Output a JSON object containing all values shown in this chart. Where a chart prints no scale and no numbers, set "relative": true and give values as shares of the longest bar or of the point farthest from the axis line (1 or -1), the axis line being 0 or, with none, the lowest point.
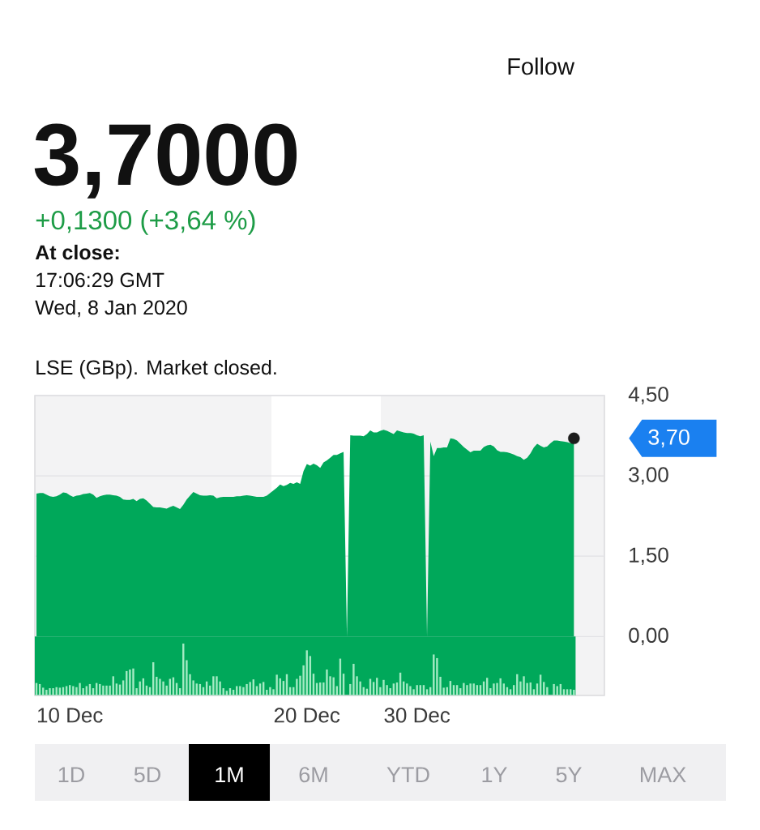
{
  "chart_data": [
    {
      "type": "area",
      "subtitle": "3,7000",
      "annotations": [
        "+0,1300 (+3,64 %)",
        "At close:",
        "17:06:29 GMT",
        "Wed, 8 Jan 2020",
        "LSE (GBp). Market closed.",
        "Follow",
        "1D",
        "5D",
        "1M",
        "6M",
        "YTD",
        "1Y",
        "5Y",
        "MAX",
        "3,70"
      ],
      "categories": [
        null,
        null,
        null,
        null,
        null,
        null,
        null,
        null,
        null,
        null,
        "10 Dec",
        null,
        null,
        null,
        null,
        null,
        null,
        null,
        null,
        null,
        null,
        null,
        null,
        null,
        null,
        null,
        null,
        null,
        null,
        null,
        null,
        null,
        null,
        null,
        null,
        null,
        null,
        null,
        null,
        null,
        null,
        null,
        null,
        null,
        null,
        null,
        null,
        null,
        null,
        null,
        null,
        null,
        null,
        null,
        null,
        null,
        null,
        null,
        null,
        null,
        null,
        null,
        null,
        null,
        null,
        null,
        null,
        null,
        null,
        null,
        null,
        null,
        null,
        null,
        null,
        null,
        null,
        null,
        null,
        null,
        null,
        "20 Dec",
        null,
        null,
        null,
        null,
        null,
        null,
        null,
        null,
        null,
        null,
        null,
        null,
        null,
        null,
        null,
        null,
        null,
        null,
        null,
        null,
        null,
        null,
        null,
        null,
        null,
        null,
        null,
        null,
        null,
        null,
        null,
        null,
        "30 Dec",
        null,
        null,
        null,
        null,
        null,
        null,
        null,
        null,
        null,
        null,
        null,
        null,
        null,
        null,
        null,
        null,
        null,
        null,
        null,
        null,
        null,
        null,
        null,
        null,
        null,
        null,
        null,
        null,
        null,
        null,
        null,
        null,
        null,
        null,
        null,
        null,
        null,
        null,
        null,
        null,
        null,
        null,
        null,
        null,
        null,
        null,
        null
      ],
      "series": [
        {
          "type": "area",
          "color": "#00a85a",
          "values": [
            2.67,
            2.68,
            2.68,
            2.65,
            2.62,
            2.61,
            2.62,
            2.65,
            2.69,
            2.68,
            2.64,
            2.61,
            2.63,
            2.64,
            2.66,
            2.67,
            2.68,
            2.65,
            2.59,
            2.62,
            2.64,
            2.65,
            2.65,
            2.64,
            2.63,
            2.61,
            2.56,
            2.55,
            2.55,
            2.57,
            2.53,
            2.57,
            2.58,
            2.54,
            2.48,
            2.42,
            2.41,
            2.41,
            2.4,
            2.39,
            2.42,
            2.44,
            2.41,
            2.38,
            2.46,
            2.56,
            2.63,
            2.7,
            2.67,
            2.64,
            2.63,
            2.63,
            2.64,
            2.63,
            2.58,
            2.6,
            2.61,
            2.61,
            2.61,
            2.61,
            2.62,
            2.62,
            2.63,
            2.64,
            2.63,
            2.62,
            2.61,
            2.61,
            2.61,
            2.63,
            2.68,
            2.73,
            2.78,
            2.84,
            2.81,
            2.83,
            2.87,
            2.85,
            2.88,
            2.85,
            3.09,
            3.22,
            3.19,
            3.23,
            3.2,
            3.15,
            3.25,
            3.29,
            3.34,
            3.39,
            3.39,
            3.42,
            3.45,
            0,
            3.76,
            3.75,
            3.75,
            3.75,
            3.74,
            3.78,
            3.85,
            3.81,
            3.81,
            3.84,
            3.86,
            3.84,
            3.81,
            3.78,
            3.85,
            3.83,
            3.81,
            3.8,
            3.8,
            3.79,
            3.76,
            3.74,
            3.76,
            0,
            3.64,
            3.37,
            3.52,
            3.52,
            3.53,
            3.53,
            3.7,
            3.69,
            3.66,
            3.6,
            3.54,
            3.49,
            3.44,
            3.47,
            3.47,
            3.47,
            3.54,
            3.57,
            3.58,
            3.55,
            3.48,
            3.45,
            3.45,
            3.44,
            3.42,
            3.4,
            3.37,
            3.35,
            3.3,
            3.34,
            3.42,
            3.53,
            3.6,
            3.56,
            3.53,
            3.55,
            3.61,
            3.66,
            3.66,
            3.65,
            3.64,
            3.63,
            3.61,
            3.7
          ]
        },
        {
          "type": "scatter",
          "color": "#1c1c1c",
          "marker": "circle",
          "values": [
            null,
            null,
            null,
            null,
            null,
            null,
            null,
            null,
            null,
            null,
            null,
            null,
            null,
            null,
            null,
            null,
            null,
            null,
            null,
            null,
            null,
            null,
            null,
            null,
            null,
            null,
            null,
            null,
            null,
            null,
            null,
            null,
            null,
            null,
            null,
            null,
            null,
            null,
            null,
            null,
            null,
            null,
            null,
            null,
            null,
            null,
            null,
            null,
            null,
            null,
            null,
            null,
            null,
            null,
            null,
            null,
            null,
            null,
            null,
            null,
            null,
            null,
            null,
            null,
            null,
            null,
            null,
            null,
            null,
            null,
            null,
            null,
            null,
            null,
            null,
            null,
            null,
            null,
            null,
            null,
            null,
            null,
            null,
            null,
            null,
            null,
            null,
            null,
            null,
            null,
            null,
            null,
            null,
            null,
            null,
            null,
            null,
            null,
            null,
            null,
            null,
            null,
            null,
            null,
            null,
            null,
            null,
            null,
            null,
            null,
            null,
            null,
            null,
            null,
            null,
            null,
            null,
            null,
            null,
            null,
            null,
            null,
            null,
            null,
            null,
            null,
            null,
            null,
            null,
            null,
            null,
            null,
            null,
            null,
            null,
            null,
            null,
            null,
            null,
            null,
            null,
            null,
            null,
            null,
            null,
            null,
            null,
            null,
            null,
            null,
            null,
            null,
            null,
            null,
            null,
            null,
            null,
            null,
            null,
            null,
            null,
            3.7
          ]
        }
      ],
      "ylim": [
        -1.1,
        4.5
      ],
      "yticks": [
        {
          "value": 0,
          "label": "0,00"
        },
        {
          "value": 1.5,
          "label": "1,50"
        },
        {
          "value": 3,
          "label": "3,00"
        },
        {
          "value": 4.5,
          "label": "4,50"
        }
      ],
      "grid": "y"
    },
    {
      "type": "bar",
      "relative": true,
      "color": "#a4eac3",
      "categories": [
        null,
        null,
        null,
        null,
        null,
        null,
        null,
        null,
        null,
        null,
        null,
        null,
        null,
        null,
        null,
        null,
        null,
        null,
        null,
        null,
        null,
        null,
        null,
        null,
        null,
        null,
        null,
        null,
        null,
        null,
        null,
        null,
        null,
        null,
        null,
        null,
        null,
        null,
        null,
        null,
        null,
        null,
        null,
        null,
        null,
        null,
        null,
        null,
        null,
        null,
        null,
        null,
        null,
        null,
        null,
        null,
        null,
        null,
        null,
        null,
        null,
        null,
        null,
        null,
        null,
        null,
        null,
        null,
        null,
        null,
        null,
        null,
        null,
        null,
        null,
        null,
        null,
        null,
        null,
        null,
        null,
        null,
        null,
        null,
        null,
        null,
        null,
        null,
        null,
        null,
        null,
        null,
        null,
        null,
        null,
        null,
        null,
        null,
        null,
        null,
        null,
        null,
        null,
        null,
        null,
        null,
        null,
        null,
        null,
        null,
        null,
        null,
        null,
        null,
        null,
        null,
        null,
        null,
        null,
        null,
        null,
        null,
        null,
        null,
        null,
        null,
        null,
        null,
        null,
        null,
        null,
        null,
        null,
        null,
        null,
        null,
        null,
        null,
        null,
        null,
        null,
        null,
        null,
        null,
        null,
        null,
        null,
        null,
        null,
        null,
        null,
        null,
        null,
        null,
        null,
        null,
        null,
        null,
        null,
        null,
        null,
        null
      ],
      "values": [
        0.24,
        0.22,
        0.15,
        0.11,
        0.14,
        0.14,
        0.16,
        0.15,
        0.16,
        0.18,
        0.2,
        0.18,
        0.16,
        0.24,
        0.14,
        0.18,
        0.22,
        0.14,
        0.24,
        0.22,
        0.19,
        0.19,
        0.19,
        0.37,
        0.23,
        0.21,
        0.29,
        0.47,
        0.5,
        0.52,
        0.14,
        0.27,
        0.33,
        0.19,
        0.16,
        0.64,
        0.36,
        0.32,
        0.27,
        0.19,
        0.32,
        0.35,
        0.24,
        0.14,
        1,
        0.68,
        0.41,
        0.29,
        0.23,
        0.22,
        0.16,
        0.27,
        0.19,
        0.37,
        0.37,
        0.27,
        0.14,
        0.09,
        0.14,
        0.11,
        0.18,
        0.18,
        0.16,
        0.22,
        0.26,
        0.31,
        0.18,
        0.23,
        0.26,
        0.11,
        0.16,
        0.12,
        0.4,
        0.33,
        0.28,
        0.41,
        0.16,
        0.16,
        0.32,
        0.38,
        0.58,
        0.87,
        0.76,
        0.42,
        0.24,
        0.25,
        0.25,
        0.5,
        0.37,
        0.35,
        0.18,
        0.71,
        0.42,
        null,
        0.22,
        0.61,
        0.37,
        0.27,
        0.16,
        0.13,
        0.32,
        0.26,
        0.34,
        0.16,
        0.3,
        0.2,
        0.14,
        0.23,
        0.25,
        0.44,
        0.27,
        0.23,
        0.18,
        0.12,
        0.2,
        0.2,
        0.2,
        0.12,
        0.16,
        0.79,
        0.72,
        0.36,
        0.15,
        0.16,
        0.28,
        0.2,
        0.2,
        0.14,
        0.24,
        0.2,
        0.23,
        0.23,
        0.2,
        0.2,
        0.27,
        0.34,
        0.14,
        0.23,
        0.24,
        0.33,
        0.23,
        0.16,
        0.12,
        0.2,
        0.41,
        0.27,
        0.37,
        0.24,
        0.25,
        0.12,
        0.23,
        0.4,
        0.26,
        0.16,
        null,
        0.22,
        0.18,
        0.22,
        0.12,
        0.12,
        0.12,
        0.11
      ]
    }
  ]
}
